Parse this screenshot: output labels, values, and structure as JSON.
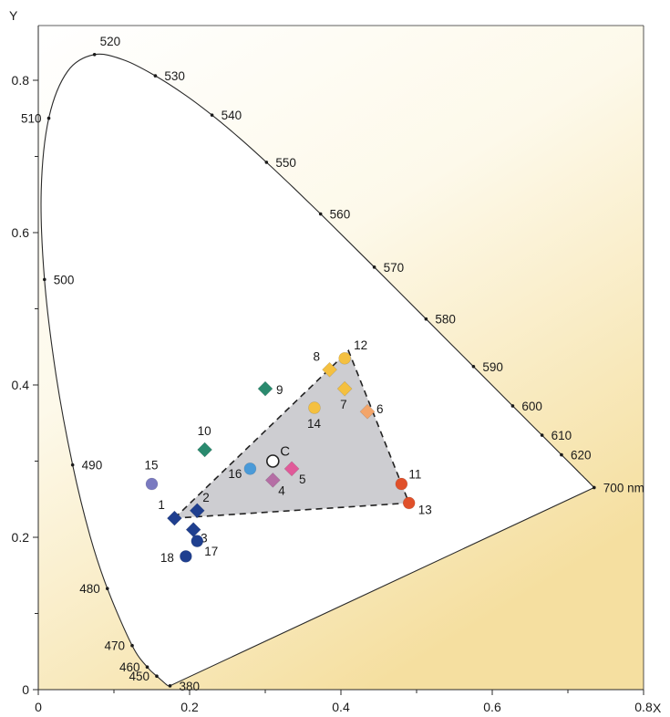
{
  "chart_data": {
    "type": "scatter",
    "title": "",
    "xlabel": "X",
    "ylabel": "Y",
    "xlim": [
      0,
      0.8
    ],
    "ylim": [
      0,
      0.87
    ],
    "grid": false,
    "x_ticks": [
      {
        "value": 0,
        "label": "0"
      },
      {
        "value": 0.2,
        "label": "0.2"
      },
      {
        "value": 0.4,
        "label": "0.4"
      },
      {
        "value": 0.6,
        "label": "0.6"
      },
      {
        "value": 0.8,
        "label": "0.8"
      }
    ],
    "y_ticks": [
      {
        "value": 0,
        "label": "0"
      },
      {
        "value": 0.2,
        "label": "0.2"
      },
      {
        "value": 0.4,
        "label": "0.4"
      },
      {
        "value": 0.6,
        "label": "0.6"
      },
      {
        "value": 0.8,
        "label": "0.8"
      }
    ],
    "spectral_locus": [
      [
        0.1741,
        0.005
      ],
      [
        0.1738,
        0.0049
      ],
      [
        0.1733,
        0.0048
      ],
      [
        0.1726,
        0.0048
      ],
      [
        0.1714,
        0.0051
      ],
      [
        0.1689,
        0.0069
      ],
      [
        0.1644,
        0.0109
      ],
      [
        0.1566,
        0.0177
      ],
      [
        0.144,
        0.0297
      ],
      [
        0.1241,
        0.0578
      ],
      [
        0.0913,
        0.1327
      ],
      [
        0.0687,
        0.2007
      ],
      [
        0.0454,
        0.295
      ],
      [
        0.0235,
        0.4127
      ],
      [
        0.0082,
        0.5384
      ],
      [
        0.0039,
        0.6548
      ],
      [
        0.0139,
        0.7502
      ],
      [
        0.0389,
        0.812
      ],
      [
        0.0743,
        0.8338
      ],
      [
        0.1142,
        0.8262
      ],
      [
        0.1547,
        0.8059
      ],
      [
        0.1929,
        0.7816
      ],
      [
        0.2296,
        0.7543
      ],
      [
        0.2658,
        0.7243
      ],
      [
        0.3016,
        0.6923
      ],
      [
        0.3373,
        0.6589
      ],
      [
        0.3731,
        0.6245
      ],
      [
        0.4087,
        0.5896
      ],
      [
        0.4441,
        0.5547
      ],
      [
        0.4788,
        0.5202
      ],
      [
        0.5125,
        0.4866
      ],
      [
        0.5448,
        0.4544
      ],
      [
        0.5752,
        0.4242
      ],
      [
        0.6029,
        0.3965
      ],
      [
        0.627,
        0.3725
      ],
      [
        0.6482,
        0.3514
      ],
      [
        0.6658,
        0.334
      ],
      [
        0.6801,
        0.3197
      ],
      [
        0.6915,
        0.3083
      ],
      [
        0.7006,
        0.2993
      ],
      [
        0.7079,
        0.292
      ],
      [
        0.714,
        0.2859
      ],
      [
        0.719,
        0.2809
      ],
      [
        0.723,
        0.277
      ],
      [
        0.726,
        0.274
      ],
      [
        0.7347,
        0.2653
      ]
    ],
    "wavelength_labels": [
      {
        "label": "380",
        "x": 0.1741,
        "y": 0.005,
        "side": "right"
      },
      {
        "label": "450",
        "x": 0.1566,
        "y": 0.0177,
        "side": "left"
      },
      {
        "label": "460",
        "x": 0.144,
        "y": 0.0297,
        "side": "left"
      },
      {
        "label": "470",
        "x": 0.1241,
        "y": 0.0578,
        "side": "left"
      },
      {
        "label": "480",
        "x": 0.0913,
        "y": 0.1327,
        "side": "left"
      },
      {
        "label": "490",
        "x": 0.0454,
        "y": 0.295,
        "side": "right"
      },
      {
        "label": "500",
        "x": 0.0082,
        "y": 0.5384,
        "side": "right"
      },
      {
        "label": "510",
        "x": 0.0139,
        "y": 0.7502,
        "side": "left"
      },
      {
        "label": "520",
        "x": 0.0743,
        "y": 0.8338,
        "side": "above"
      },
      {
        "label": "530",
        "x": 0.1547,
        "y": 0.8059,
        "side": "right"
      },
      {
        "label": "540",
        "x": 0.2296,
        "y": 0.7543,
        "side": "right"
      },
      {
        "label": "550",
        "x": 0.3016,
        "y": 0.6923,
        "side": "right"
      },
      {
        "label": "560",
        "x": 0.3731,
        "y": 0.6245,
        "side": "right"
      },
      {
        "label": "570",
        "x": 0.4441,
        "y": 0.5547,
        "side": "right"
      },
      {
        "label": "580",
        "x": 0.5125,
        "y": 0.4866,
        "side": "right"
      },
      {
        "label": "590",
        "x": 0.5752,
        "y": 0.4242,
        "side": "right"
      },
      {
        "label": "600",
        "x": 0.627,
        "y": 0.3725,
        "side": "right"
      },
      {
        "label": "610",
        "x": 0.6658,
        "y": 0.334,
        "side": "right"
      },
      {
        "label": "620",
        "x": 0.6915,
        "y": 0.3083,
        "side": "right"
      },
      {
        "label": "700 nm",
        "x": 0.7347,
        "y": 0.2653,
        "side": "right"
      }
    ],
    "gamut_triangle": [
      [
        0.18,
        0.225
      ],
      [
        0.41,
        0.445
      ],
      [
        0.49,
        0.245
      ]
    ],
    "points": [
      {
        "label": "1",
        "x": 0.18,
        "y": 0.225,
        "shape": "diamond",
        "color": "#1f3f8f"
      },
      {
        "label": "2",
        "x": 0.21,
        "y": 0.235,
        "shape": "diamond",
        "color": "#1f3f8f"
      },
      {
        "label": "3",
        "x": 0.205,
        "y": 0.21,
        "shape": "diamond",
        "color": "#1f3f8f"
      },
      {
        "label": "4",
        "x": 0.31,
        "y": 0.275,
        "shape": "diamond",
        "color": "#b56ea5"
      },
      {
        "label": "5",
        "x": 0.335,
        "y": 0.29,
        "shape": "diamond",
        "color": "#e05a99"
      },
      {
        "label": "6",
        "x": 0.435,
        "y": 0.365,
        "shape": "diamond",
        "color": "#f3a56a"
      },
      {
        "label": "7",
        "x": 0.405,
        "y": 0.395,
        "shape": "diamond",
        "color": "#f4c040"
      },
      {
        "label": "8",
        "x": 0.385,
        "y": 0.42,
        "shape": "diamond",
        "color": "#f4c040"
      },
      {
        "label": "9",
        "x": 0.3,
        "y": 0.395,
        "shape": "diamond",
        "color": "#2a8a6e"
      },
      {
        "label": "10",
        "x": 0.22,
        "y": 0.315,
        "shape": "diamond",
        "color": "#2a8a6e"
      },
      {
        "label": "11",
        "x": 0.48,
        "y": 0.27,
        "shape": "circle",
        "color": "#e0502a"
      },
      {
        "label": "12",
        "x": 0.405,
        "y": 0.435,
        "shape": "circle",
        "color": "#f4c040"
      },
      {
        "label": "13",
        "x": 0.49,
        "y": 0.245,
        "shape": "circle",
        "color": "#e0502a"
      },
      {
        "label": "14",
        "x": 0.365,
        "y": 0.37,
        "shape": "circle",
        "color": "#f4c040"
      },
      {
        "label": "15",
        "x": 0.15,
        "y": 0.27,
        "shape": "circle",
        "color": "#7a7ac0"
      },
      {
        "label": "16",
        "x": 0.28,
        "y": 0.29,
        "shape": "circle",
        "color": "#4a9ad8"
      },
      {
        "label": "17",
        "x": 0.21,
        "y": 0.195,
        "shape": "circle",
        "color": "#1f3f8f"
      },
      {
        "label": "18",
        "x": 0.195,
        "y": 0.175,
        "shape": "circle",
        "color": "#1f3f8f"
      },
      {
        "label": "C",
        "x": 0.31,
        "y": 0.3,
        "shape": "circle",
        "color": "#ffffff"
      }
    ],
    "colors": {
      "locus_line": "#2a2a2a",
      "gamut_fill": "#cfcfd2",
      "background_light": "#fdfbf3",
      "background_warm": "#f6e3a8"
    }
  }
}
